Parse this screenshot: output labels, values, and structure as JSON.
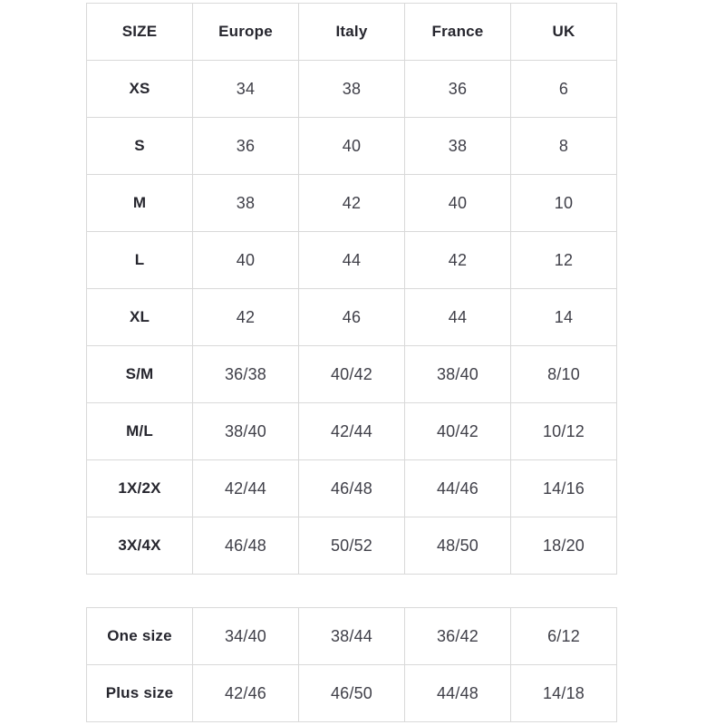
{
  "colors": {
    "background": "#ffffff",
    "border": "#d9d9d9",
    "header_text": "#26262e",
    "value_text": "#3f3f48"
  },
  "chart_data": {
    "type": "table",
    "columns": [
      "SIZE",
      "Europe",
      "Italy",
      "France",
      "UK"
    ],
    "rows": [
      [
        "XS",
        "34",
        "38",
        "36",
        "6"
      ],
      [
        "S",
        "36",
        "40",
        "38",
        "8"
      ],
      [
        "M",
        "38",
        "42",
        "40",
        "10"
      ],
      [
        "L",
        "40",
        "44",
        "42",
        "12"
      ],
      [
        "XL",
        "42",
        "46",
        "44",
        "14"
      ],
      [
        "S/M",
        "36/38",
        "40/42",
        "38/40",
        "8/10"
      ],
      [
        "M/L",
        "38/40",
        "42/44",
        "40/42",
        "10/12"
      ],
      [
        "1X/2X",
        "42/44",
        "46/48",
        "44/46",
        "14/16"
      ],
      [
        "3X/4X",
        "46/48",
        "50/52",
        "48/50",
        "18/20"
      ]
    ],
    "secondary_rows": [
      [
        "One size",
        "34/40",
        "38/44",
        "36/42",
        "6/12"
      ],
      [
        "Plus size",
        "42/46",
        "46/50",
        "44/48",
        "14/18"
      ]
    ],
    "layout_hints": {
      "grid": "on",
      "header_row": true,
      "secondary_table_has_header": false
    }
  }
}
